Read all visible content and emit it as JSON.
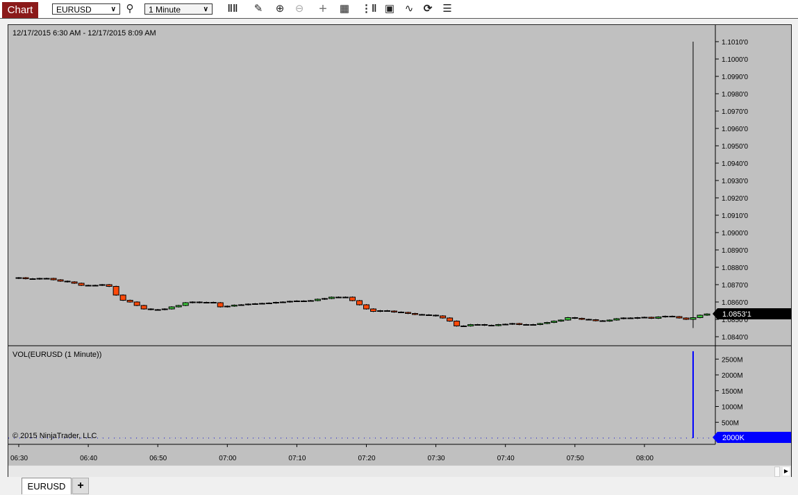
{
  "toolbar": {
    "chart_label": "Chart",
    "instrument": "EURUSD",
    "interval": "1 Minute",
    "icons": [
      "search-icon",
      "bar-type-icon",
      "pencil-icon",
      "zoom-in-icon",
      "zoom-out-icon",
      "crosshair-icon",
      "data-box-icon",
      "columns-icon",
      "indicators-icon",
      "strategies-icon",
      "reload-icon",
      "properties-icon"
    ]
  },
  "price_panel": {
    "date_range": "12/17/2015 6:30 AM - 12/17/2015 8:09 AM",
    "last_price_label": "1.0853'1",
    "last_price_bg": "#000000"
  },
  "volume_panel": {
    "title": "VOL(EURUSD (1 Minute))",
    "copyright": "© 2015 NinjaTrader, LLC",
    "last_volume_label": "2000K",
    "volume_color": "#0000ff"
  },
  "tabs": {
    "items": [
      {
        "label": "EURUSD"
      }
    ],
    "add_label": "+"
  },
  "chart_data": {
    "type": "candlestick",
    "interval_minutes": 1,
    "start_time": "06:30",
    "price_ylim": [
      1.0836,
      1.102
    ],
    "price_ticks": [
      "1.0840'0",
      "1.0850'0",
      "1.0860'0",
      "1.0870'0",
      "1.0880'0",
      "1.0890'0",
      "1.0900'0",
      "1.0910'0",
      "1.0920'0",
      "1.0930'0",
      "1.0940'0",
      "1.0950'0",
      "1.0960'0",
      "1.0970'0",
      "1.0980'0",
      "1.0990'0",
      "1.1000'0",
      "1.1010'0"
    ],
    "volume_ticks": [
      "500M",
      "1000M",
      "1500M",
      "2000M",
      "2500M"
    ],
    "x_ticks": [
      "06:30",
      "06:40",
      "06:50",
      "07:00",
      "07:10",
      "07:20",
      "07:30",
      "07:40",
      "07:50",
      "08:00"
    ],
    "up_color": "#3ec43e",
    "down_color": "#ff4a0a",
    "first_open": 1.08736,
    "closes": [
      1.0874,
      1.08734,
      1.08732,
      1.08736,
      1.08736,
      1.08728,
      1.0872,
      1.08716,
      1.08708,
      1.08696,
      1.08696,
      1.08696,
      1.087,
      1.0869,
      1.0864,
      1.0861,
      1.086,
      1.0858,
      1.0856,
      1.08556,
      1.08556,
      1.0856,
      1.08572,
      1.0858,
      1.08596,
      1.086,
      1.08596,
      1.08598,
      1.08596,
      1.08572,
      1.08576,
      1.08582,
      1.08584,
      1.08588,
      1.0859,
      1.08592,
      1.08594,
      1.08598,
      1.086,
      1.08604,
      1.08606,
      1.08606,
      1.08608,
      1.08616,
      1.0862,
      1.08628,
      1.08628,
      1.08628,
      1.08608,
      1.08584,
      1.0856,
      1.08546,
      1.0855,
      1.08548,
      1.08542,
      1.0854,
      1.08534,
      1.08528,
      1.08526,
      1.08524,
      1.0852,
      1.08508,
      1.0849,
      1.08462,
      1.08462,
      1.0847,
      1.0847,
      1.08466,
      1.08464,
      1.0847,
      1.08472,
      1.08476,
      1.0847,
      1.0847,
      1.0847,
      1.08476,
      1.08482,
      1.0849,
      1.08496,
      1.0851,
      1.08506,
      1.085,
      1.08498,
      1.08492,
      1.0849,
      1.08496,
      1.08504,
      1.08508,
      1.08506,
      1.0851,
      1.08512,
      1.08506,
      1.08514,
      1.08518,
      1.08516,
      1.08508,
      1.085,
      1.0851,
      1.08524,
      1.08531
    ],
    "spike": {
      "time": "08:07",
      "high": 1.101,
      "low": 1.0845
    },
    "volume_millions_spike": 2750,
    "volume_millions_other": 2
  }
}
